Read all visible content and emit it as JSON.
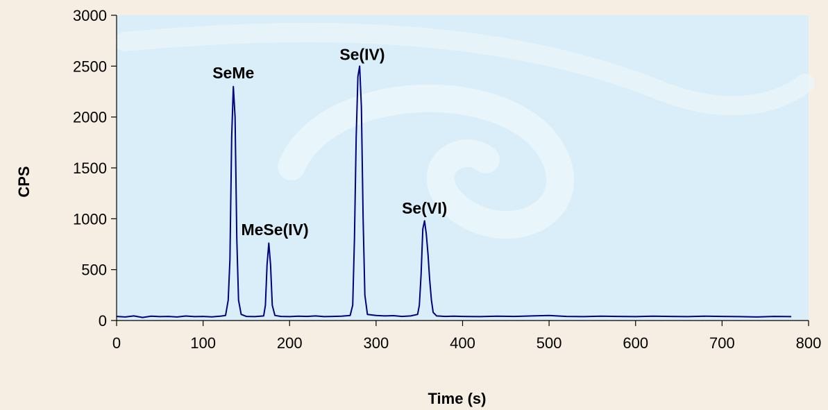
{
  "colors": {
    "page_background": "#f6ede3",
    "plot_background": "#d9eef8",
    "plot_swirl": "#ebf6fb",
    "line": "#000080",
    "axis": "#000000"
  },
  "chart_data": {
    "type": "line",
    "title": "",
    "xlabel": "Time (s)",
    "ylabel": "CPS",
    "xlim": [
      0,
      800
    ],
    "ylim": [
      0,
      3000
    ],
    "x_ticks": [
      0,
      100,
      200,
      300,
      400,
      500,
      600,
      700,
      800
    ],
    "y_ticks": [
      0,
      500,
      1000,
      1500,
      2000,
      2500,
      3000
    ],
    "grid": false,
    "legend": "none",
    "series": [
      {
        "x": [
          0,
          10,
          20,
          30,
          40,
          50,
          60,
          70,
          80,
          90,
          100,
          110,
          120,
          126,
          129,
          131,
          133,
          135,
          137,
          139,
          141,
          144,
          150,
          160,
          170,
          172,
          174,
          176,
          178,
          180,
          183,
          190,
          200,
          210,
          220,
          230,
          240,
          250,
          260,
          270,
          273,
          275,
          277,
          279,
          281,
          283,
          285,
          287,
          290,
          300,
          310,
          320,
          330,
          340,
          348,
          350,
          352,
          354,
          356,
          358,
          360,
          362,
          364,
          366,
          370,
          380,
          390,
          400,
          420,
          440,
          460,
          480,
          500,
          520,
          540,
          560,
          580,
          600,
          620,
          640,
          660,
          680,
          700,
          720,
          740,
          760,
          780
        ],
        "y": [
          40,
          35,
          45,
          30,
          42,
          38,
          40,
          35,
          44,
          38,
          40,
          36,
          42,
          50,
          200,
          600,
          1800,
          2300,
          2000,
          800,
          200,
          60,
          40,
          38,
          45,
          150,
          550,
          760,
          550,
          150,
          50,
          40,
          38,
          42,
          40,
          45,
          38,
          40,
          42,
          50,
          150,
          800,
          1800,
          2400,
          2500,
          2100,
          1000,
          250,
          60,
          50,
          45,
          48,
          40,
          45,
          60,
          150,
          450,
          900,
          980,
          850,
          650,
          400,
          200,
          80,
          45,
          40,
          42,
          40,
          38,
          42,
          40,
          45,
          50,
          40,
          38,
          42,
          40,
          38,
          42,
          40,
          38,
          42,
          40,
          38,
          35,
          40,
          38
        ]
      }
    ],
    "annotations": [
      {
        "text": "SeMe",
        "x": 135,
        "y": 2380
      },
      {
        "text": "MeSe(IV)",
        "x": 183,
        "y": 840
      },
      {
        "text": "Se(IV)",
        "x": 284,
        "y": 2560
      },
      {
        "text": "Se(VI)",
        "x": 356,
        "y": 1050
      }
    ]
  }
}
